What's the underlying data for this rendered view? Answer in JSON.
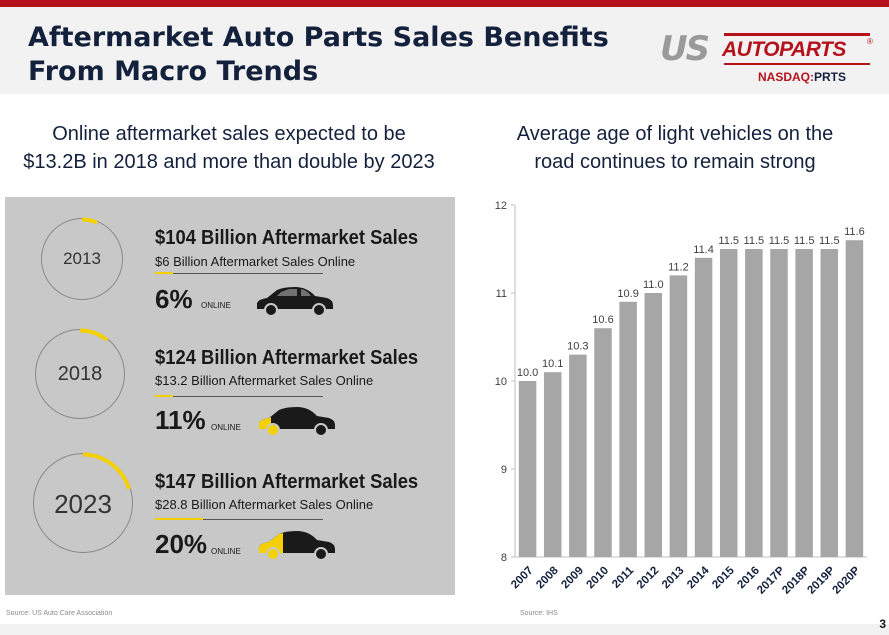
{
  "header": {
    "title_line1": "Aftermarket Auto Parts Sales Benefits",
    "title_line2": "From Macro Trends",
    "logo_us": "US",
    "logo_autoparts": "AUTOPARTS",
    "logo_tm": "®",
    "ticker_exchange": "NASDAQ:",
    "ticker_symbol": "PRTS"
  },
  "left": {
    "heading_line1": "Online aftermarket sales expected to be",
    "heading_line2": "$13.2B in 2018 and more than double by 2023",
    "rows": [
      {
        "year": "2013",
        "total": "$104 Billion Aftermarket Sales",
        "online_sales": "$6 Billion Aftermarket Sales Online",
        "percent": "6%",
        "online_label": "ONLINE",
        "share": 0.06
      },
      {
        "year": "2018",
        "total": "$124 Billion Aftermarket Sales",
        "online_sales": "$13.2 Billion Aftermarket Sales Online",
        "percent": "11%",
        "online_label": "ONLINE",
        "share": 0.11
      },
      {
        "year": "2023",
        "total": "$147 Billion Aftermarket Sales",
        "online_sales": "$28.8 Billion Aftermarket Sales Online",
        "percent": "20%",
        "online_label": "ONLINE",
        "share": 0.2
      }
    ],
    "source": "Source: US Auto Care Association"
  },
  "right": {
    "heading_line1": "Average age of light vehicles on the",
    "heading_line2": "road continues to remain strong",
    "source": "Source: IHS"
  },
  "chart_data": {
    "type": "bar",
    "title": "Average age of light vehicles on the road continues to remain strong",
    "xlabel": "",
    "ylabel": "",
    "ylim": [
      8,
      12
    ],
    "yticks": [
      8,
      9,
      10,
      11,
      12
    ],
    "categories": [
      "2007",
      "2008",
      "2009",
      "2010",
      "2011",
      "2012",
      "2013",
      "2014",
      "2015",
      "2016",
      "2017P",
      "2018P",
      "2019P",
      "2020P"
    ],
    "values": [
      10.0,
      10.1,
      10.3,
      10.6,
      10.9,
      11.0,
      11.2,
      11.4,
      11.5,
      11.5,
      11.5,
      11.5,
      11.5,
      11.6
    ],
    "value_labels": [
      "10.0",
      "10.1",
      "10.3",
      "10.6",
      "10.9",
      "11.0",
      "11.2",
      "11.4",
      "11.5",
      "11.5",
      "11.5",
      "11.5",
      "11.5",
      "11.6"
    ],
    "bar_color": "#a6a6a6",
    "grid": false,
    "legend": "none"
  },
  "page_number": "3",
  "colors": {
    "brand_red": "#b5121b",
    "navy": "#14213d",
    "yellow": "#f5d000",
    "panel_gray": "#c8c8c8"
  }
}
